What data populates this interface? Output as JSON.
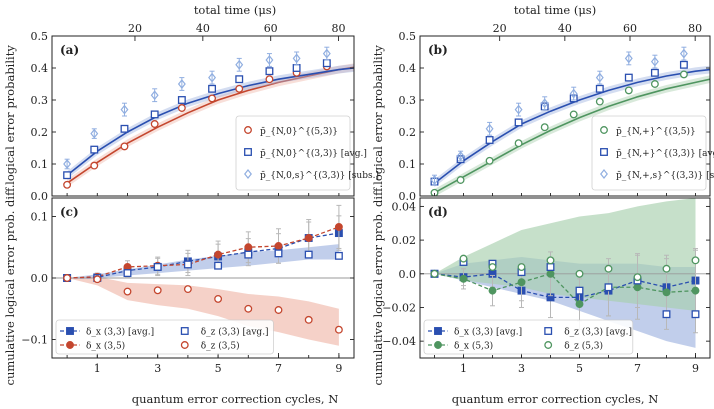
{
  "top_axis_label": "total time (μs)",
  "bottom_axis_label": "quantum error correction cycles, N",
  "ylabel_top": "logical error probability",
  "ylabel_bottom": "cumulative logical error prob. diff.",
  "colors": {
    "blue": "#2a4fb0",
    "red": "#c4462e",
    "green": "#4f9560",
    "light_blue": "#90aee0",
    "red_band": "#f0b8aa",
    "blue_band": "#9fb4e0",
    "green_band": "#a8cfae",
    "gray": "#9a9a9a"
  },
  "chart_data": [
    {
      "panel": "(a)",
      "type": "line",
      "top_axis": {
        "label": "total time (μs)",
        "ticks": [
          20,
          40,
          60,
          80
        ]
      },
      "xlim": [
        -0.5,
        9.5
      ],
      "ylim": [
        0,
        0.5
      ],
      "yticks": [
        0,
        0.1,
        0.2,
        0.3,
        0.4,
        0.5
      ],
      "x": [
        0,
        1,
        2,
        3,
        4,
        5,
        6,
        7,
        8,
        9,
        10
      ],
      "series": [
        {
          "name": "p̄_{N,0}^{(5,3)}",
          "style": "open-circle",
          "color": "red",
          "x": [
            0,
            0.9,
            1.9,
            2.9,
            3.8,
            4.8,
            5.7,
            6.7,
            7.6,
            8.6
          ],
          "values": [
            0.035,
            0.095,
            0.155,
            0.225,
            0.275,
            0.305,
            0.335,
            0.365,
            0.385,
            0.405
          ],
          "fit": [
            0.04,
            0.105,
            0.165,
            0.215,
            0.26,
            0.3,
            0.33,
            0.355,
            0.375,
            0.395,
            0.41
          ]
        },
        {
          "name": "p̄_{N,0}^{(3,3)} [avg.]",
          "style": "open-square",
          "color": "blue",
          "x": [
            0,
            0.9,
            1.9,
            2.9,
            3.8,
            4.8,
            5.7,
            6.7,
            7.6,
            8.6
          ],
          "values": [
            0.065,
            0.145,
            0.21,
            0.255,
            0.3,
            0.335,
            0.365,
            0.39,
            0.4,
            0.415
          ],
          "fit": [
            0.065,
            0.14,
            0.2,
            0.25,
            0.29,
            0.32,
            0.345,
            0.365,
            0.38,
            0.395,
            0.405
          ]
        },
        {
          "name": "p̄_{N,0,s}^{(3,3)} [subs.]",
          "style": "open-diamond",
          "color": "light_blue",
          "x": [
            0,
            0.9,
            1.9,
            2.9,
            3.8,
            4.8,
            5.7,
            6.7,
            7.6,
            8.6
          ],
          "values": [
            0.1,
            0.195,
            0.27,
            0.315,
            0.35,
            0.37,
            0.41,
            0.425,
            0.43,
            0.445
          ],
          "errors": [
            0.015,
            0.015,
            0.02,
            0.02,
            0.02,
            0.02,
            0.02,
            0.02,
            0.02,
            0.02
          ]
        }
      ],
      "legend": "lower-right"
    },
    {
      "panel": "(b)",
      "type": "line",
      "top_axis": {
        "label": "total time (μs)",
        "ticks": [
          20,
          40,
          60,
          80
        ]
      },
      "xlim": [
        -0.5,
        9.5
      ],
      "ylim": [
        0,
        0.5
      ],
      "yticks": [
        0,
        0.1,
        0.2,
        0.3,
        0.4,
        0.5
      ],
      "x": [
        0,
        1,
        2,
        3,
        4,
        5,
        6,
        7,
        8,
        9,
        10
      ],
      "series": [
        {
          "name": "p̄_{N,+}^{(3,5)}",
          "style": "open-circle",
          "color": "green",
          "x": [
            0,
            0.9,
            1.9,
            2.9,
            3.8,
            4.8,
            5.7,
            6.7,
            7.6,
            8.6
          ],
          "values": [
            0.01,
            0.05,
            0.11,
            0.165,
            0.215,
            0.255,
            0.295,
            0.33,
            0.35,
            0.38
          ],
          "fit": [
            0.01,
            0.06,
            0.11,
            0.16,
            0.205,
            0.245,
            0.28,
            0.31,
            0.335,
            0.355,
            0.375
          ]
        },
        {
          "name": "p̄_{N,+}^{(3,3)} [avg.]",
          "style": "open-square",
          "color": "blue",
          "x": [
            0,
            0.9,
            1.9,
            2.9,
            3.8,
            4.8,
            5.7,
            6.7,
            7.6,
            8.6
          ],
          "values": [
            0.045,
            0.115,
            0.175,
            0.23,
            0.28,
            0.305,
            0.335,
            0.37,
            0.385,
            0.41
          ],
          "fit": [
            0.04,
            0.11,
            0.17,
            0.225,
            0.265,
            0.3,
            0.33,
            0.355,
            0.375,
            0.39,
            0.4
          ]
        },
        {
          "name": "p̄_{N,+,s}^{(3,3)} [subs.]",
          "style": "open-diamond",
          "color": "light_blue",
          "x": [
            0,
            0.9,
            1.9,
            2.9,
            3.8,
            4.8,
            5.7,
            6.7,
            7.6,
            8.6
          ],
          "values": [
            0.05,
            0.125,
            0.21,
            0.27,
            0.29,
            0.32,
            0.37,
            0.43,
            0.42,
            0.445
          ],
          "errors": [
            0.015,
            0.015,
            0.02,
            0.02,
            0.02,
            0.02,
            0.02,
            0.02,
            0.02,
            0.02
          ]
        }
      ],
      "legend": "lower-right"
    },
    {
      "panel": "(c)",
      "type": "line",
      "xlim": [
        -0.5,
        9.5
      ],
      "ylim": [
        -0.13,
        0.13
      ],
      "yticks": [
        -0.1,
        0,
        0.1
      ],
      "xticks": [
        1,
        3,
        5,
        7,
        9
      ],
      "x": [
        0,
        1,
        2,
        3,
        4,
        5,
        6,
        7,
        8,
        9
      ],
      "series": [
        {
          "name": "δ_x (3,3) [avg.]",
          "style": "dashed-filled-square",
          "color": "blue",
          "values": [
            0,
            0.001,
            0.012,
            0.018,
            0.027,
            0.035,
            0.042,
            0.048,
            0.065,
            0.073
          ],
          "errors": [
            0,
            0.006,
            0.01,
            0.014,
            0.018,
            0.02,
            0.022,
            0.024,
            0.026,
            0.028
          ]
        },
        {
          "name": "δ_x (3,5)",
          "style": "dashed-filled-circle",
          "color": "red",
          "values": [
            0,
            0.002,
            0.018,
            0.02,
            0.022,
            0.038,
            0.05,
            0.052,
            0.065,
            0.083
          ],
          "errors": [
            0,
            0.006,
            0.01,
            0.014,
            0.018,
            0.022,
            0.025,
            0.028,
            0.03,
            0.035
          ]
        },
        {
          "name": "δ_z (3,3) [avg.]",
          "style": "open-square",
          "color": "blue",
          "values": [
            0,
            0.0,
            0.008,
            0.018,
            0.022,
            0.02,
            0.038,
            0.04,
            0.038,
            0.036
          ],
          "band": [
            [
              0,
              0
            ],
            [
              0,
              0.006
            ],
            [
              0.004,
              0.014
            ],
            [
              0.008,
              0.022
            ],
            [
              0.012,
              0.03
            ],
            [
              0.016,
              0.036
            ],
            [
              0.02,
              0.042
            ],
            [
              0.025,
              0.045
            ],
            [
              0.03,
              0.05
            ],
            [
              0.03,
              0.055
            ]
          ]
        },
        {
          "name": "δ_z (3,5)",
          "style": "open-circle",
          "color": "red",
          "values": [
            0,
            -0.002,
            -0.022,
            -0.02,
            -0.018,
            -0.034,
            -0.05,
            -0.052,
            -0.068,
            -0.084
          ],
          "band": [
            [
              0,
              0
            ],
            [
              -0.012,
              0.002
            ],
            [
              -0.036,
              -0.008
            ],
            [
              -0.044,
              -0.01
            ],
            [
              -0.05,
              -0.012
            ],
            [
              -0.062,
              -0.018
            ],
            [
              -0.078,
              -0.026
            ],
            [
              -0.088,
              -0.03
            ],
            [
              -0.1,
              -0.038
            ],
            [
              -0.11,
              -0.05
            ]
          ]
        }
      ],
      "legend": "lower-left"
    },
    {
      "panel": "(d)",
      "type": "line",
      "xlim": [
        -0.5,
        9.5
      ],
      "ylim": [
        -0.05,
        0.045
      ],
      "yticks": [
        -0.04,
        -0.02,
        0,
        0.02,
        0.04
      ],
      "xticks": [
        1,
        3,
        5,
        7,
        9
      ],
      "x": [
        0,
        1,
        2,
        3,
        4,
        5,
        6,
        7,
        8,
        9
      ],
      "series": [
        {
          "name": "δ_x (3,3) [avg.]",
          "style": "dashed-filled-square",
          "color": "blue",
          "values": [
            0,
            -0.002,
            0.0,
            -0.01,
            -0.014,
            -0.014,
            -0.01,
            -0.004,
            -0.008,
            -0.004
          ],
          "errors": [
            0,
            0.005,
            0.008,
            0.01,
            0.012,
            0.014,
            0.015,
            0.016,
            0.017,
            0.018
          ]
        },
        {
          "name": "δ_x (5,3)",
          "style": "dashed-filled-circle",
          "color": "green",
          "values": [
            0,
            -0.003,
            -0.01,
            -0.005,
            0.0,
            -0.018,
            -0.008,
            -0.008,
            -0.011,
            -0.01
          ],
          "errors": [
            0,
            0.006,
            0.009,
            0.011,
            0.013,
            0.015,
            0.017,
            0.019,
            0.022,
            0.025
          ]
        },
        {
          "name": "δ_z (3,3) [avg.]",
          "style": "open-square",
          "color": "blue",
          "values": [
            0,
            0.007,
            0.006,
            0.001,
            0.004,
            -0.01,
            -0.008,
            -0.004,
            -0.024,
            -0.024
          ],
          "band": [
            [
              0,
              0
            ],
            [
              -0.004,
              0.006
            ],
            [
              -0.008,
              0.008
            ],
            [
              -0.012,
              0.01
            ],
            [
              -0.016,
              0.008
            ],
            [
              -0.022,
              0.006
            ],
            [
              -0.028,
              0.006
            ],
            [
              -0.034,
              0.006
            ],
            [
              -0.04,
              0.004
            ],
            [
              -0.044,
              0.004
            ]
          ]
        },
        {
          "name": "δ_z (5,3)",
          "style": "open-circle",
          "color": "green",
          "values": [
            0,
            0.009,
            0.004,
            0.004,
            0.008,
            0.0,
            0.003,
            -0.002,
            0.003,
            0.008
          ],
          "band": [
            [
              0,
              0
            ],
            [
              -0.004,
              0.01
            ],
            [
              -0.006,
              0.018
            ],
            [
              -0.008,
              0.026
            ],
            [
              -0.012,
              0.03
            ],
            [
              -0.014,
              0.034
            ],
            [
              -0.016,
              0.036
            ],
            [
              -0.018,
              0.04
            ],
            [
              -0.02,
              0.043
            ],
            [
              -0.022,
              0.045
            ]
          ]
        }
      ],
      "legend": "lower-left"
    }
  ]
}
